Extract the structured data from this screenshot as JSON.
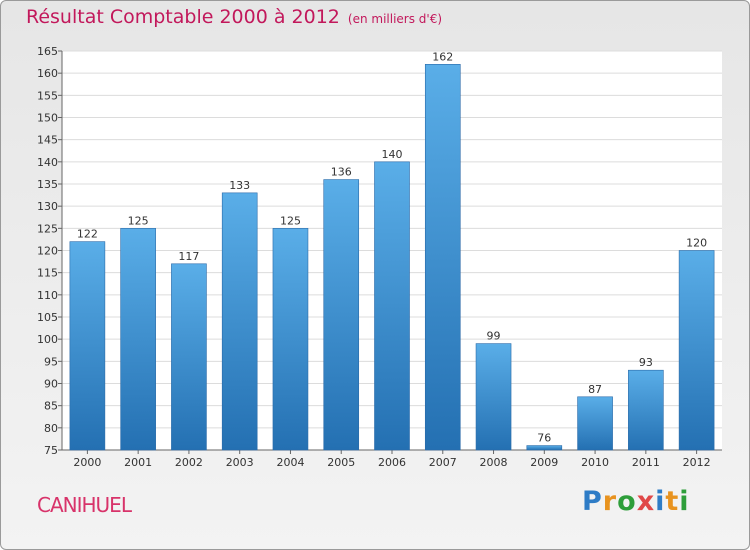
{
  "header": {
    "title": "Résultat Comptable 2000 à 2012",
    "subtitle": "(en milliers d'€)"
  },
  "footer": {
    "commune": "CANIHUEL",
    "brand_letters": [
      "P",
      "r",
      "o",
      "x",
      "i",
      "t",
      "i"
    ],
    "brand_colors": [
      "#2e7cc6",
      "#e8931f",
      "#2e9e3a",
      "#e04848",
      "#2e7cc6",
      "#e8931f",
      "#2e9e3a"
    ]
  },
  "chart_data": {
    "type": "bar",
    "categories": [
      "2000",
      "2001",
      "2002",
      "2003",
      "2004",
      "2005",
      "2006",
      "2007",
      "2008",
      "2009",
      "2010",
      "2011",
      "2012"
    ],
    "values": [
      122,
      125,
      117,
      133,
      125,
      136,
      140,
      162,
      99,
      76,
      87,
      93,
      120
    ],
    "value_labels": [
      "122",
      "125",
      "117",
      "133",
      "125",
      "136",
      "140",
      "162",
      "99",
      "76",
      "87",
      "93",
      "120"
    ],
    "ylim": [
      75,
      165
    ],
    "yticks": [
      75,
      80,
      85,
      90,
      95,
      100,
      105,
      110,
      115,
      120,
      125,
      130,
      135,
      140,
      145,
      150,
      155,
      160,
      165
    ],
    "grid": true,
    "colors": {
      "bar_top": "#5aaee8",
      "bar_bottom": "#2470b2",
      "title": "#c2185b"
    }
  }
}
